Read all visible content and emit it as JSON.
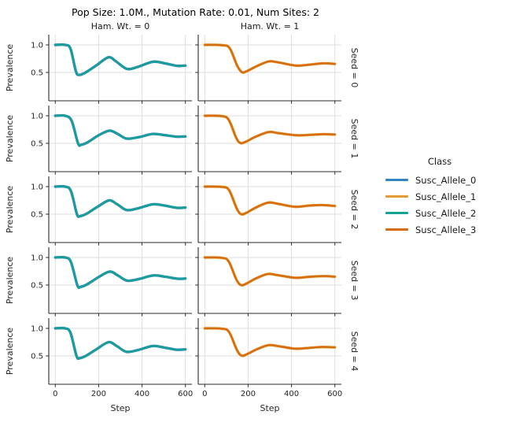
{
  "figure": {
    "title": "Pop Size: 1.0M., Mutation Rate: 0.01, Num Sites: 2",
    "col_titles": [
      "Ham. Wt. = 0",
      "Ham. Wt. = 1"
    ],
    "row_titles": [
      "Seed = 0",
      "Seed = 1",
      "Seed = 2",
      "Seed = 3",
      "Seed = 4"
    ],
    "xlabel": "Step",
    "ylabel": "Prevalence",
    "x_tick_labels": [
      "0",
      "200",
      "400",
      "600"
    ],
    "y_tick_labels": [
      "1.0",
      "0.5"
    ]
  },
  "legend": {
    "title": "Class",
    "entries": [
      {
        "label": "Susc_Allele_0",
        "color": "#3385c2"
      },
      {
        "label": "Susc_Allele_1",
        "color": "#e39b33"
      },
      {
        "label": "Susc_Allele_2",
        "color": "#15a292"
      },
      {
        "label": "Susc_Allele_3",
        "color": "#d56c12"
      }
    ]
  },
  "chart_data": {
    "type": "line",
    "title": "Pop Size: 1.0M., Mutation Rate: 0.01, Num Sites: 2",
    "facet_cols": [
      "Ham. Wt. = 0",
      "Ham. Wt. = 1"
    ],
    "facet_rows": [
      "Seed = 0",
      "Seed = 1",
      "Seed = 2",
      "Seed = 3",
      "Seed = 4"
    ],
    "xlabel": "Step",
    "ylabel": "Prevalence",
    "xlim": [
      -30,
      630
    ],
    "ylim": [
      -0.02,
      1.19
    ],
    "x_ticks": [
      0,
      200,
      400,
      600
    ],
    "y_ticks": [
      1.0,
      0.5
    ],
    "grid": true,
    "legend_position": "right",
    "colors": {
      "Susc_Allele_0": "#3385c2",
      "Susc_Allele_1": "#e39b33",
      "Susc_Allele_2": "#15a292",
      "Susc_Allele_3": "#d56c12"
    },
    "note": "In column Ham. Wt. = 0 the curves for Susc_Allele_0 and Susc_Allele_2 coincide (teal drawn on top). In column Ham. Wt. = 1 the curves for Susc_Allele_1 and Susc_Allele_3 coincide (dark orange drawn on top).",
    "panels": [
      {
        "row": "Seed = 0",
        "col": "Ham. Wt. = 0",
        "under_series": "Susc_Allele_0",
        "top_series": "Susc_Allele_2",
        "points": [
          [
            0,
            1.0
          ],
          [
            45,
            1.0
          ],
          [
            70,
            0.93
          ],
          [
            95,
            0.52
          ],
          [
            110,
            0.455
          ],
          [
            140,
            0.5
          ],
          [
            190,
            0.63
          ],
          [
            245,
            0.775
          ],
          [
            280,
            0.7
          ],
          [
            330,
            0.565
          ],
          [
            380,
            0.6
          ],
          [
            450,
            0.695
          ],
          [
            505,
            0.665
          ],
          [
            560,
            0.62
          ],
          [
            600,
            0.625
          ]
        ]
      },
      {
        "row": "Seed = 0",
        "col": "Ham. Wt. = 1",
        "under_series": "Susc_Allele_1",
        "top_series": "Susc_Allele_3",
        "points": [
          [
            0,
            1.0
          ],
          [
            80,
            0.995
          ],
          [
            115,
            0.94
          ],
          [
            150,
            0.62
          ],
          [
            172,
            0.505
          ],
          [
            195,
            0.525
          ],
          [
            240,
            0.615
          ],
          [
            295,
            0.7
          ],
          [
            335,
            0.685
          ],
          [
            420,
            0.625
          ],
          [
            480,
            0.64
          ],
          [
            545,
            0.665
          ],
          [
            600,
            0.655
          ]
        ]
      },
      {
        "row": "Seed = 1",
        "col": "Ham. Wt. = 0",
        "under_series": "Susc_Allele_0",
        "top_series": "Susc_Allele_2",
        "points": [
          [
            0,
            1.0
          ],
          [
            45,
            1.0
          ],
          [
            75,
            0.91
          ],
          [
            105,
            0.5
          ],
          [
            120,
            0.475
          ],
          [
            150,
            0.52
          ],
          [
            200,
            0.645
          ],
          [
            250,
            0.73
          ],
          [
            290,
            0.665
          ],
          [
            330,
            0.585
          ],
          [
            390,
            0.615
          ],
          [
            450,
            0.67
          ],
          [
            510,
            0.645
          ],
          [
            560,
            0.62
          ],
          [
            600,
            0.625
          ]
        ]
      },
      {
        "row": "Seed = 1",
        "col": "Ham. Wt. = 1",
        "under_series": "Susc_Allele_1",
        "top_series": "Susc_Allele_3",
        "points": [
          [
            0,
            1.0
          ],
          [
            75,
            0.995
          ],
          [
            110,
            0.93
          ],
          [
            145,
            0.6
          ],
          [
            165,
            0.505
          ],
          [
            190,
            0.53
          ],
          [
            235,
            0.62
          ],
          [
            295,
            0.705
          ],
          [
            340,
            0.685
          ],
          [
            425,
            0.645
          ],
          [
            490,
            0.655
          ],
          [
            550,
            0.665
          ],
          [
            600,
            0.66
          ]
        ]
      },
      {
        "row": "Seed = 2",
        "col": "Ham. Wt. = 0",
        "under_series": "Susc_Allele_0",
        "top_series": "Susc_Allele_2",
        "points": [
          [
            0,
            1.0
          ],
          [
            45,
            1.0
          ],
          [
            72,
            0.92
          ],
          [
            100,
            0.5
          ],
          [
            115,
            0.465
          ],
          [
            145,
            0.51
          ],
          [
            195,
            0.635
          ],
          [
            248,
            0.75
          ],
          [
            285,
            0.68
          ],
          [
            330,
            0.575
          ],
          [
            385,
            0.61
          ],
          [
            450,
            0.68
          ],
          [
            505,
            0.655
          ],
          [
            560,
            0.615
          ],
          [
            600,
            0.62
          ]
        ]
      },
      {
        "row": "Seed = 2",
        "col": "Ham. Wt. = 1",
        "under_series": "Susc_Allele_1",
        "top_series": "Susc_Allele_3",
        "points": [
          [
            0,
            1.0
          ],
          [
            78,
            0.995
          ],
          [
            112,
            0.935
          ],
          [
            148,
            0.6
          ],
          [
            168,
            0.5
          ],
          [
            192,
            0.525
          ],
          [
            238,
            0.625
          ],
          [
            292,
            0.71
          ],
          [
            335,
            0.69
          ],
          [
            415,
            0.635
          ],
          [
            480,
            0.655
          ],
          [
            540,
            0.665
          ],
          [
            600,
            0.648
          ]
        ]
      },
      {
        "row": "Seed = 3",
        "col": "Ham. Wt. = 0",
        "under_series": "Susc_Allele_0",
        "top_series": "Susc_Allele_2",
        "points": [
          [
            0,
            1.0
          ],
          [
            45,
            1.0
          ],
          [
            72,
            0.92
          ],
          [
            102,
            0.495
          ],
          [
            118,
            0.468
          ],
          [
            148,
            0.515
          ],
          [
            198,
            0.64
          ],
          [
            250,
            0.745
          ],
          [
            288,
            0.675
          ],
          [
            332,
            0.58
          ],
          [
            388,
            0.612
          ],
          [
            452,
            0.675
          ],
          [
            508,
            0.65
          ],
          [
            562,
            0.615
          ],
          [
            600,
            0.618
          ]
        ]
      },
      {
        "row": "Seed = 3",
        "col": "Ham. Wt. = 1",
        "under_series": "Susc_Allele_1",
        "top_series": "Susc_Allele_3",
        "points": [
          [
            0,
            1.0
          ],
          [
            76,
            0.995
          ],
          [
            110,
            0.93
          ],
          [
            146,
            0.6
          ],
          [
            167,
            0.5
          ],
          [
            191,
            0.525
          ],
          [
            236,
            0.62
          ],
          [
            290,
            0.7
          ],
          [
            333,
            0.682
          ],
          [
            418,
            0.632
          ],
          [
            482,
            0.65
          ],
          [
            545,
            0.662
          ],
          [
            600,
            0.652
          ]
        ]
      },
      {
        "row": "Seed = 4",
        "col": "Ham. Wt. = 0",
        "under_series": "Susc_Allele_0",
        "top_series": "Susc_Allele_2",
        "points": [
          [
            0,
            1.0
          ],
          [
            45,
            1.0
          ],
          [
            70,
            0.92
          ],
          [
            98,
            0.5
          ],
          [
            113,
            0.46
          ],
          [
            143,
            0.505
          ],
          [
            193,
            0.63
          ],
          [
            246,
            0.75
          ],
          [
            283,
            0.68
          ],
          [
            328,
            0.575
          ],
          [
            383,
            0.608
          ],
          [
            448,
            0.68
          ],
          [
            503,
            0.652
          ],
          [
            558,
            0.613
          ],
          [
            600,
            0.618
          ]
        ]
      },
      {
        "row": "Seed = 4",
        "col": "Ham. Wt. = 1",
        "under_series": "Susc_Allele_1",
        "top_series": "Susc_Allele_3",
        "points": [
          [
            0,
            1.0
          ],
          [
            78,
            0.995
          ],
          [
            112,
            0.935
          ],
          [
            148,
            0.61
          ],
          [
            170,
            0.505
          ],
          [
            194,
            0.53
          ],
          [
            240,
            0.62
          ],
          [
            292,
            0.695
          ],
          [
            335,
            0.68
          ],
          [
            415,
            0.632
          ],
          [
            478,
            0.645
          ],
          [
            540,
            0.662
          ],
          [
            600,
            0.655
          ]
        ]
      }
    ]
  }
}
